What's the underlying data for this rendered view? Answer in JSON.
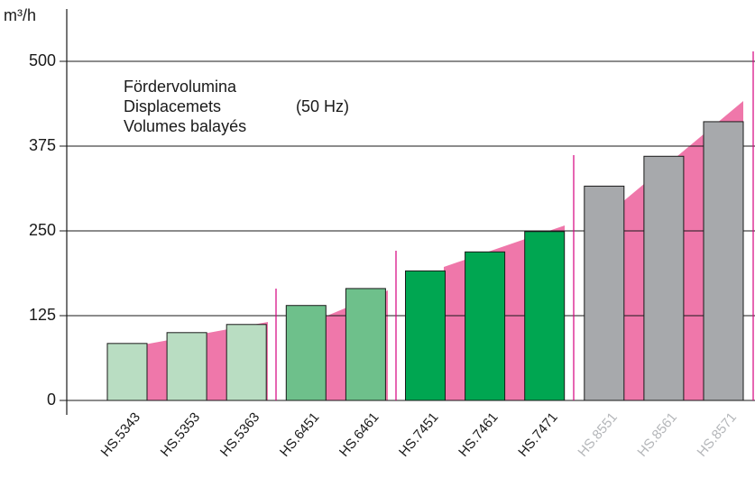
{
  "chart_data": {
    "type": "bar",
    "y_label": "m³/h",
    "annotation_lines": [
      "Fördervolumina",
      "Displacemets",
      "Volumes balayés"
    ],
    "annotation_note": "(50 Hz)",
    "categories": [
      "HS.5343",
      "HS.5353",
      "HS.5363",
      "HS.6451",
      "HS.6461",
      "HS.7451",
      "HS.7461",
      "HS.7471",
      "HS.8551",
      "HS.8561",
      "HS.8571"
    ],
    "values": [
      84,
      100,
      112,
      140,
      165,
      191,
      219,
      249,
      316,
      360,
      411
    ],
    "colors": [
      "#b9ddc2",
      "#b9ddc2",
      "#b9ddc2",
      "#6ec08b",
      "#6ec08b",
      "#00a651",
      "#00a651",
      "#00a651",
      "#a7a9ac",
      "#a7a9ac",
      "#a7a9ac"
    ],
    "label_colors": [
      "#1a1a1a",
      "#1a1a1a",
      "#1a1a1a",
      "#1a1a1a",
      "#1a1a1a",
      "#1a1a1a",
      "#1a1a1a",
      "#1a1a1a",
      "#b5b7ba",
      "#b5b7ba",
      "#b5b7ba"
    ],
    "ylim": [
      0,
      500
    ],
    "yticks": [
      0,
      125,
      250,
      375,
      500
    ],
    "grid": true
  }
}
